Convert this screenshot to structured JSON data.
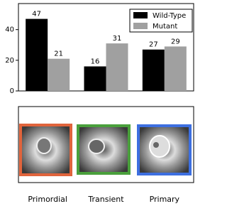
{
  "chart_data": {
    "type": "bar",
    "categories": [
      "Primordial",
      "Transient",
      "Primary"
    ],
    "series": [
      {
        "name": "Wild-Type",
        "color": "#000000",
        "values": [
          47,
          16,
          27
        ]
      },
      {
        "name": "Mutant",
        "color": "#a0a0a0",
        "values": [
          21,
          31,
          29
        ]
      }
    ],
    "ylim": [
      0,
      57
    ],
    "yticks": [
      0,
      20,
      40
    ],
    "legend": "upper right"
  }
}
